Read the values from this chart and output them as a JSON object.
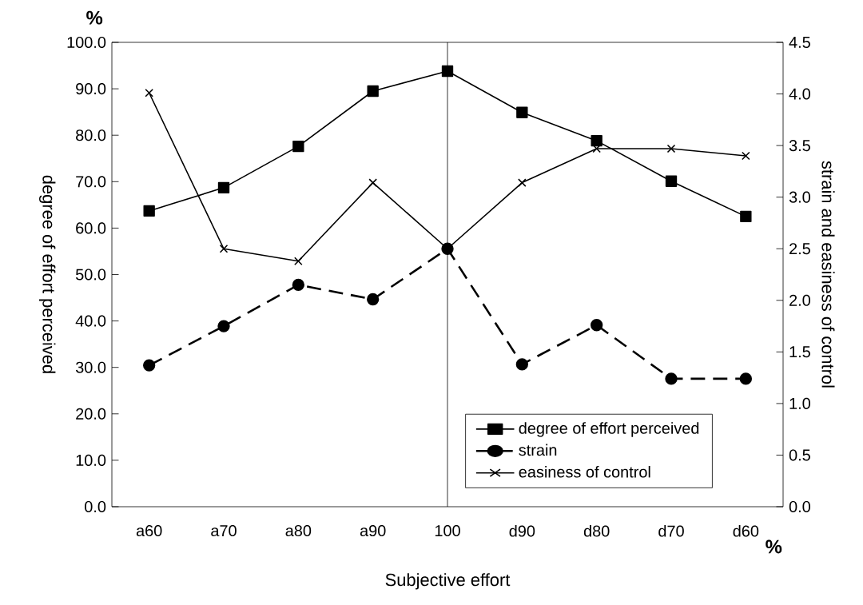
{
  "chart_data": {
    "type": "line",
    "xlabel": "Subjective effort",
    "ylabel": "degree of effort perceived",
    "y2label": "strain and easiness of control",
    "categories": [
      "a60",
      "a70",
      "a80",
      "a90",
      "100",
      "d90",
      "d80",
      "d70",
      "d60"
    ],
    "series": [
      {
        "name": "degree of effort perceived",
        "color": "#000000",
        "marker": "square",
        "line_style": "solid",
        "values": [
          63.7,
          68.7,
          77.6,
          89.5,
          93.8,
          84.9,
          78.8,
          70.1,
          62.5
        ]
      },
      {
        "name": "strain",
        "color": "#000000",
        "marker": "circle",
        "line_style": "dashed",
        "axis": "y2",
        "values": [
          1.37,
          1.75,
          2.15,
          2.01,
          2.5,
          1.38,
          1.76,
          1.24,
          1.24
        ]
      },
      {
        "name": "easiness of control",
        "color": "#000000",
        "marker": "cross",
        "line_style": "solid",
        "axis": "y2",
        "values": [
          4.01,
          2.5,
          2.38,
          3.14,
          2.5,
          3.14,
          3.47,
          3.47,
          3.4
        ]
      }
    ],
    "ylim": [
      0,
      100
    ],
    "yticks": [
      {
        "value": 0,
        "label": "0.0"
      },
      {
        "value": 10,
        "label": "10.0"
      },
      {
        "value": 20,
        "label": "20.0"
      },
      {
        "value": 30,
        "label": "30.0"
      },
      {
        "value": 40,
        "label": "40.0"
      },
      {
        "value": 50,
        "label": "50.0"
      },
      {
        "value": 60,
        "label": "60.0"
      },
      {
        "value": 70,
        "label": "70.0"
      },
      {
        "value": 80,
        "label": "80.0"
      },
      {
        "value": 90,
        "label": "90.0"
      },
      {
        "value": 100,
        "label": "100.0"
      }
    ],
    "y2lim": [
      0,
      4.5
    ],
    "y2ticks": [
      {
        "value": 0,
        "label": "0.0"
      },
      {
        "value": 0.5,
        "label": "0.5"
      },
      {
        "value": 1,
        "label": "1.0"
      },
      {
        "value": 1.5,
        "label": "1.5"
      },
      {
        "value": 2,
        "label": "2.0"
      },
      {
        "value": 2.5,
        "label": "2.5"
      },
      {
        "value": 3,
        "label": "3.0"
      },
      {
        "value": 3.5,
        "label": "3.5"
      },
      {
        "value": 4,
        "label": "4.0"
      },
      {
        "value": 4.5,
        "label": "4.5"
      }
    ],
    "ref_lines": [
      {
        "axis": "x",
        "value": "100",
        "color": "#000000",
        "line_style": "solid"
      }
    ],
    "annotations": [
      "%",
      "%"
    ],
    "grid": false,
    "legend": "bottom right"
  }
}
